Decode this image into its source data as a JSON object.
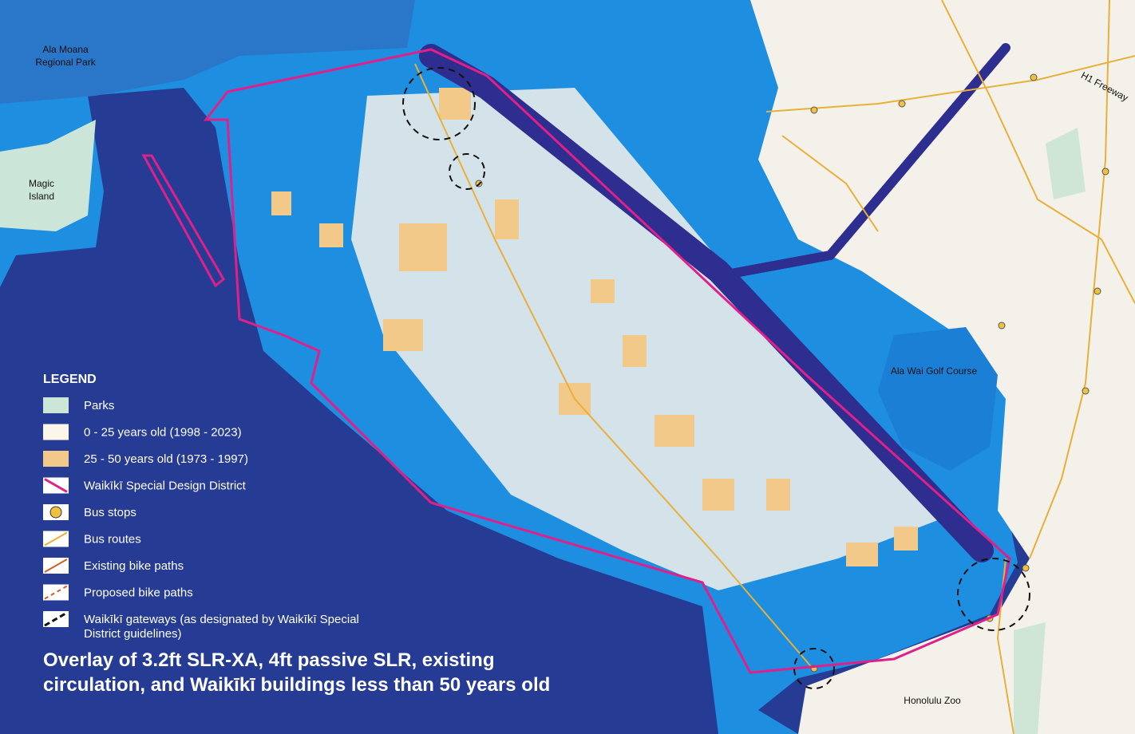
{
  "map_labels": [
    {
      "lines": [
        "Ala Moana",
        "Regional Park"
      ]
    },
    {
      "lines": [
        "Magic",
        "Island"
      ]
    },
    {
      "lines": [
        "H1 Freeway"
      ]
    },
    {
      "lines": [
        "Ala Wai Golf Course"
      ]
    },
    {
      "lines": [
        "Honolulu Zoo"
      ]
    }
  ],
  "legend": {
    "title": "LEGEND",
    "items": [
      {
        "lines": [
          "Parks"
        ]
      },
      {
        "lines": [
          "0 - 25 years old (1998 - 2023)"
        ]
      },
      {
        "lines": [
          "25 - 50 years old (1973 - 1997)"
        ]
      },
      {
        "lines": [
          "Waikīkī Special Design District"
        ]
      },
      {
        "lines": [
          "Bus stops"
        ]
      },
      {
        "lines": [
          "Bus routes"
        ]
      },
      {
        "lines": [
          "Existing bike paths"
        ]
      },
      {
        "lines": [
          "Proposed bike paths"
        ]
      },
      {
        "lines": [
          "Waikīkī gateways (as designated by Waikīkī Special",
          "District guidelines)"
        ]
      }
    ]
  },
  "caption": {
    "lines": [
      "Overlay of 3.2ft SLR-XA, 4ft passive SLR, existing",
      "circulation, and Waikīkī buildings less than 50 years old"
    ]
  }
}
